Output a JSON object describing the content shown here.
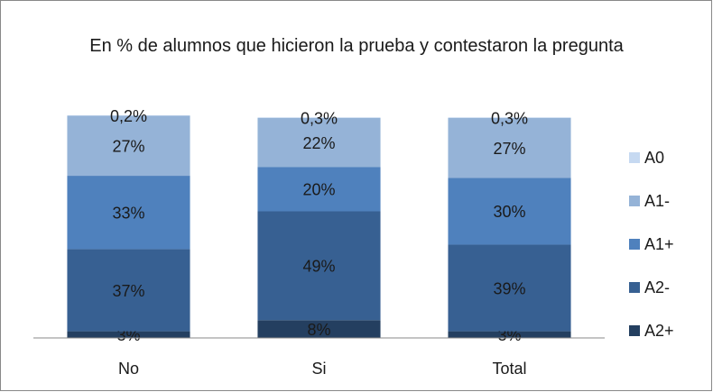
{
  "chart_data": {
    "type": "stacked_bar",
    "title": "En % de alumnos que hicieron la prueba y contestaron la pregunta",
    "categories": [
      "No",
      "Si",
      "Total"
    ],
    "series": [
      {
        "name": "A2+",
        "color": "#243f60",
        "values": [
          3,
          8,
          3
        ],
        "value_labels": [
          "3%",
          "8%",
          "3%"
        ]
      },
      {
        "name": "A2-",
        "color": "#376092",
        "values": [
          37,
          49,
          39
        ],
        "value_labels": [
          "37%",
          "49%",
          "39%"
        ]
      },
      {
        "name": "A1+",
        "color": "#4f81bd",
        "values": [
          33,
          20,
          30
        ],
        "value_labels": [
          "33%",
          "20%",
          "30%"
        ]
      },
      {
        "name": "A1-",
        "color": "#95b3d7",
        "values": [
          27,
          22,
          27
        ],
        "value_labels": [
          "27%",
          "22%",
          "27%"
        ]
      },
      {
        "name": "A0",
        "color": "#c6d9f1",
        "values": [
          0.2,
          0.3,
          0.3
        ],
        "value_labels": [
          "0,2%",
          "0,3%",
          "0,3%"
        ]
      }
    ],
    "legend": "right"
  }
}
